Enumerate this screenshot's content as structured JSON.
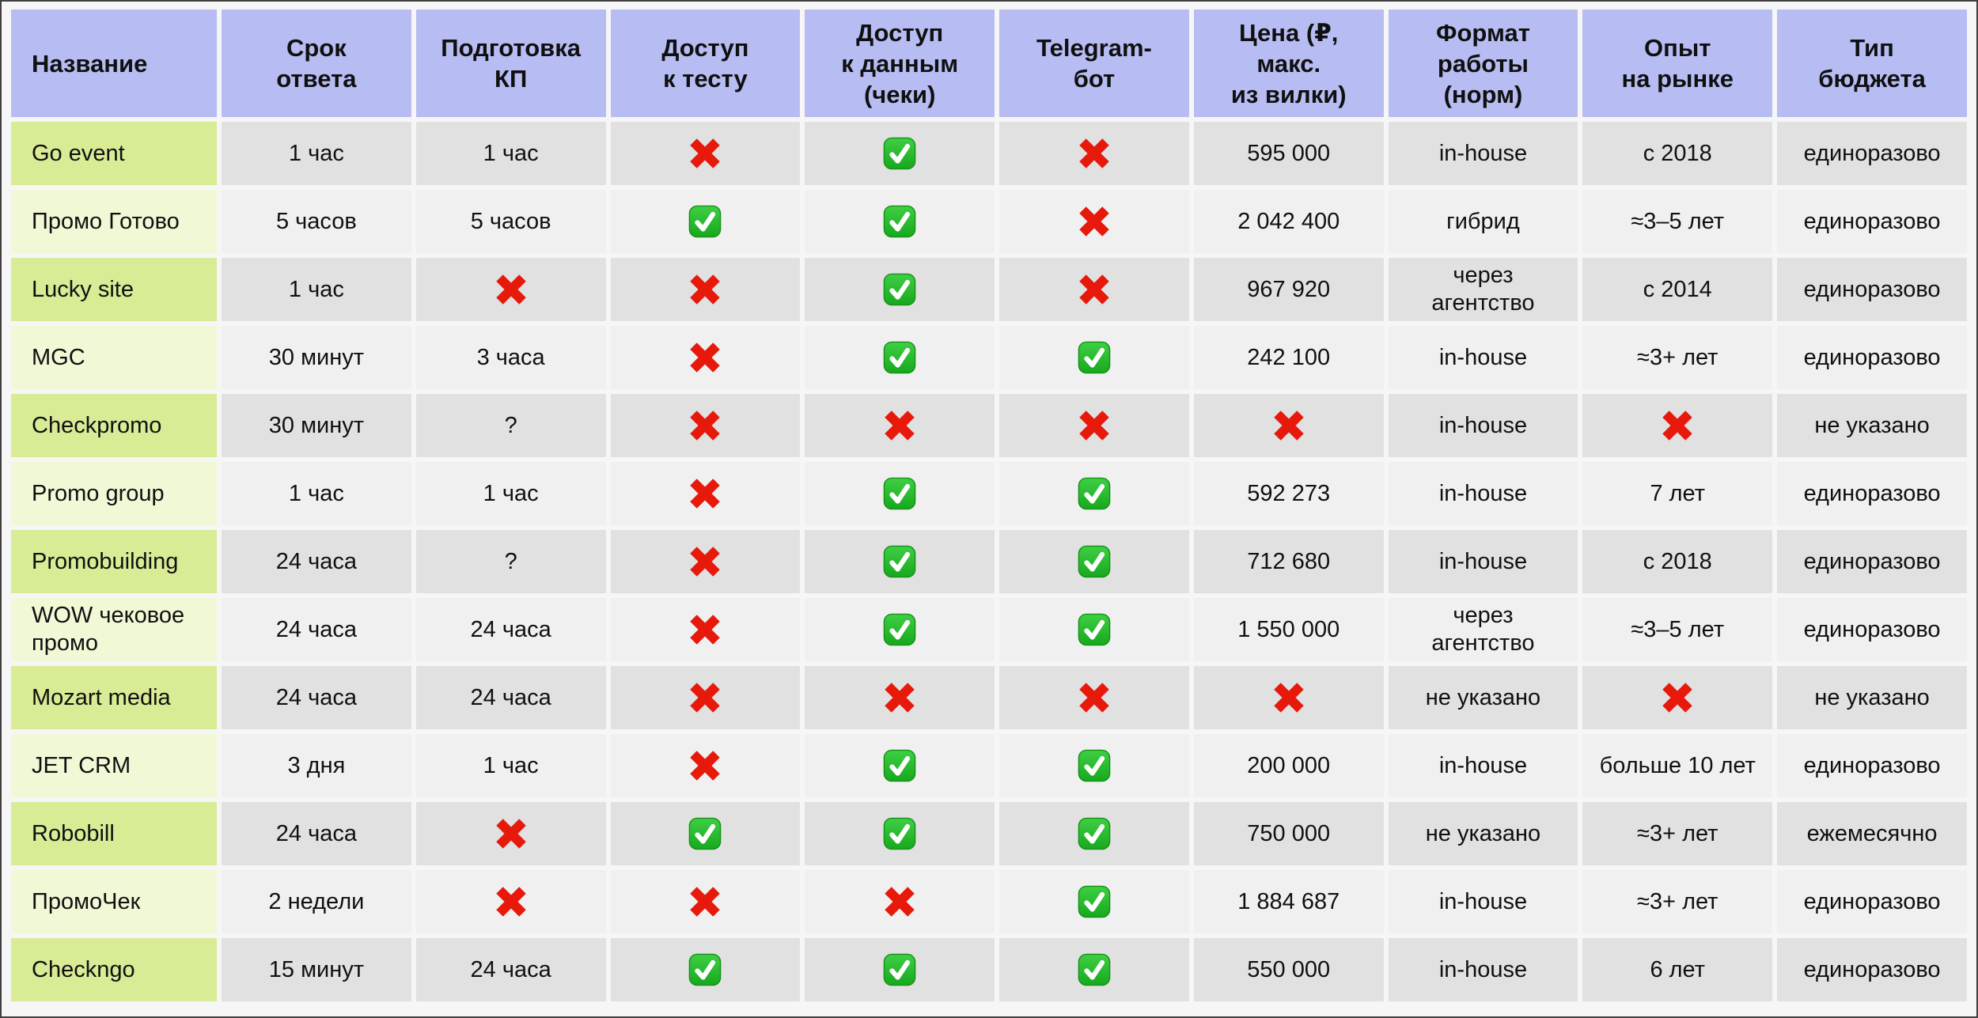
{
  "page": {
    "background_color": "#f6f6f6",
    "frame_border_color": "#3f3f3f"
  },
  "table": {
    "header": {
      "name_label": "Название",
      "columns": [
        "Срок\nответа",
        "Подготовка\nКП",
        "Доступ\nк тесту",
        "Доступ\nк данным\n(чеки)",
        "Telegram-\nбот",
        "Цена (₽,\nмакс.\nиз вилки)",
        "Формат\nработы\n(норм)",
        "Опыт\nна рынке",
        "Тип\nбюджета"
      ]
    },
    "rows": [
      {
        "name": "Go event",
        "cells": [
          "1 час",
          "1 час",
          "cross",
          "check",
          "cross",
          "595 000",
          "in-house",
          "с 2018",
          "единоразово"
        ]
      },
      {
        "name": "Промо Готово",
        "cells": [
          "5 часов",
          "5 часов",
          "check",
          "check",
          "cross",
          "2 042 400",
          "гибрид",
          "≈3–5 лет",
          "единоразово"
        ]
      },
      {
        "name": "Lucky site",
        "cells": [
          "1 час",
          "cross",
          "cross",
          "check",
          "cross",
          "967 920",
          "через\nагентство",
          "с 2014",
          "единоразово"
        ]
      },
      {
        "name": "MGC",
        "cells": [
          "30 минут",
          "3 часа",
          "cross",
          "check",
          "check",
          "242 100",
          "in-house",
          "≈3+ лет",
          "единоразово"
        ]
      },
      {
        "name": "Checkpromo",
        "cells": [
          "30 минут",
          "?",
          "cross",
          "cross",
          "cross",
          "cross",
          "in-house",
          "cross",
          "не указано"
        ]
      },
      {
        "name": "Promo group",
        "cells": [
          "1 час",
          "1 час",
          "cross",
          "check",
          "check",
          "592 273",
          "in-house",
          "7 лет",
          "единоразово"
        ]
      },
      {
        "name": "Promobuilding",
        "cells": [
          "24 часа",
          "?",
          "cross",
          "check",
          "check",
          "712 680",
          "in-house",
          "с 2018",
          "единоразово"
        ]
      },
      {
        "name": "WOW чековое промо",
        "cells": [
          "24 часа",
          "24 часа",
          "cross",
          "check",
          "check",
          "1 550 000",
          "через\nагентство",
          "≈3–5 лет",
          "единоразово"
        ]
      },
      {
        "name": "Mozart media",
        "cells": [
          "24 часа",
          "24 часа",
          "cross",
          "cross",
          "cross",
          "cross",
          "не указано",
          "cross",
          "не указано"
        ]
      },
      {
        "name": "JET CRM",
        "cells": [
          "3 дня",
          "1 час",
          "cross",
          "check",
          "check",
          "200 000",
          "in-house",
          "больше 10 лет",
          "единоразово"
        ]
      },
      {
        "name": "Robobill",
        "cells": [
          "24 часа",
          "cross",
          "check",
          "check",
          "check",
          "750 000",
          "не указано",
          "≈3+ лет",
          "ежемесячно"
        ]
      },
      {
        "name": "ПромоЧек",
        "cells": [
          "2 недели",
          "cross",
          "cross",
          "cross",
          "check",
          "1 884 687",
          "in-house",
          "≈3+ лет",
          "единоразово"
        ]
      },
      {
        "name": "Checkngo",
        "cells": [
          "15 минут",
          "24 часа",
          "check",
          "check",
          "check",
          "550 000",
          "in-house",
          "6 лет",
          "единоразово"
        ]
      }
    ],
    "icons": {
      "cross": "cross-icon",
      "check": "check-icon"
    },
    "colors": {
      "header_bg": "#b7bdf3",
      "name_cell_odd_bg": "#d8eb95",
      "name_cell_even_bg": "#f1f8d6",
      "data_cell_odd_bg": "#e1e1e1",
      "data_cell_even_bg": "#f0f0f0",
      "cross_red": "#e6190b",
      "check_green": "#1fab24",
      "text": "#101010"
    }
  }
}
